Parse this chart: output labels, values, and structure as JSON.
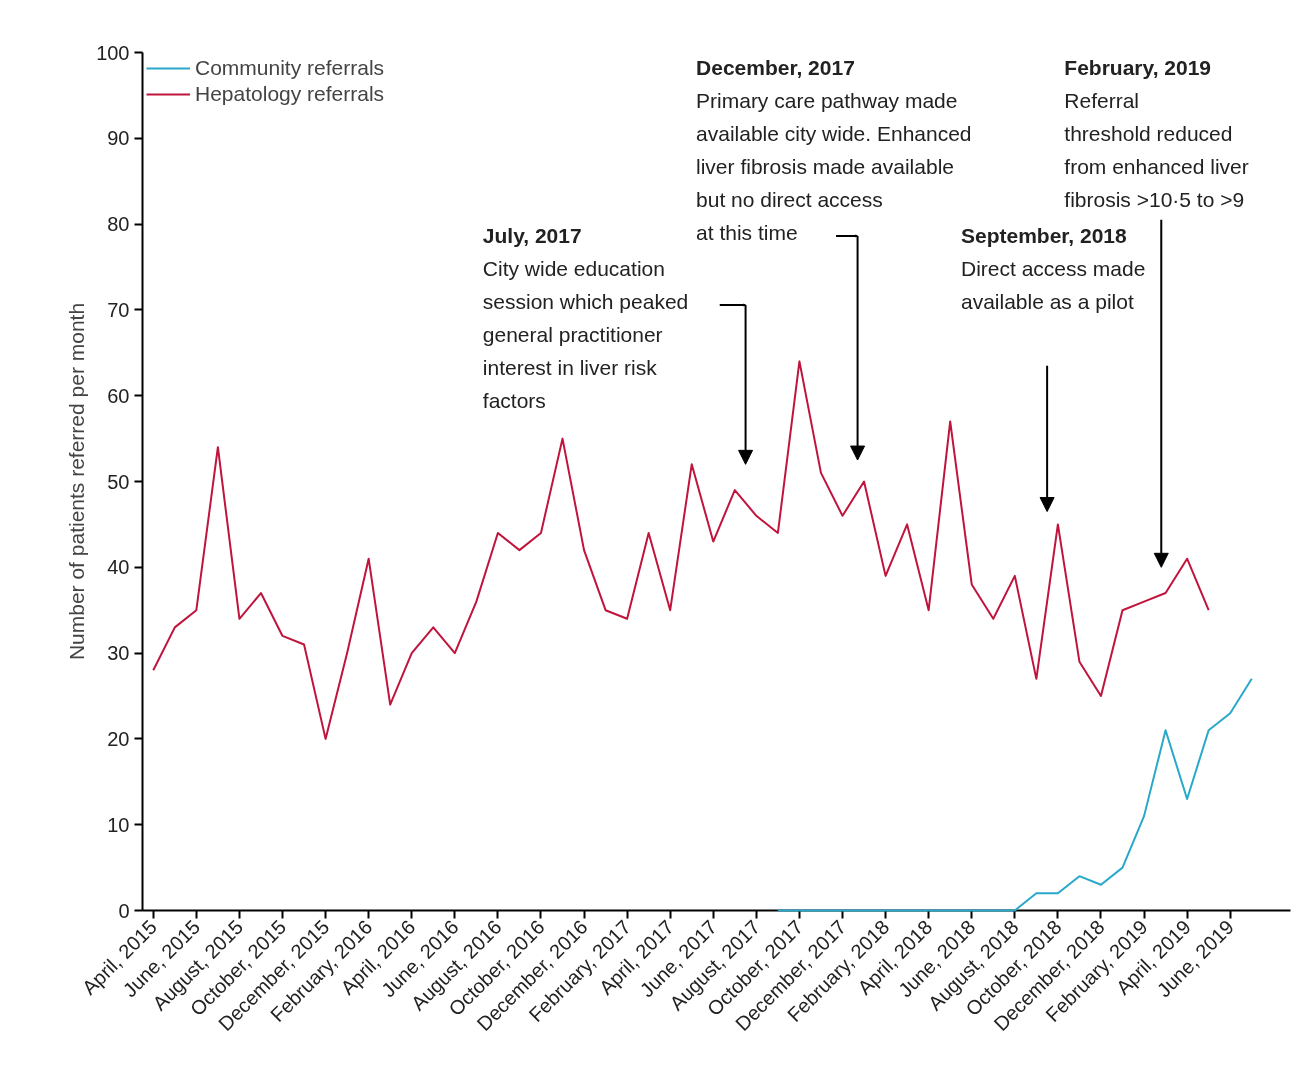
{
  "chart_data": {
    "type": "line",
    "ylabel": "Number of patients referred per month",
    "xlim": [
      "2015-03-16",
      "2019-08-25"
    ],
    "ylim": [
      0,
      100
    ],
    "yticks": [
      0,
      10,
      20,
      30,
      40,
      50,
      60,
      70,
      80,
      90,
      100
    ],
    "xticks": [
      {
        "value": "2015-04",
        "label": "April, 2015"
      },
      {
        "value": "2015-06",
        "label": "June, 2015"
      },
      {
        "value": "2015-08",
        "label": "August, 2015"
      },
      {
        "value": "2015-10",
        "label": "October, 2015"
      },
      {
        "value": "2015-12",
        "label": "December, 2015"
      },
      {
        "value": "2016-02",
        "label": "February, 2016"
      },
      {
        "value": "2016-04",
        "label": "April, 2016"
      },
      {
        "value": "2016-06",
        "label": "June, 2016"
      },
      {
        "value": "2016-08",
        "label": "August, 2016"
      },
      {
        "value": "2016-10",
        "label": "October, 2016"
      },
      {
        "value": "2016-12",
        "label": "December, 2016"
      },
      {
        "value": "2017-02",
        "label": "February, 2017"
      },
      {
        "value": "2017-04",
        "label": "April, 2017"
      },
      {
        "value": "2017-06",
        "label": "June, 2017"
      },
      {
        "value": "2017-08",
        "label": "August, 2017"
      },
      {
        "value": "2017-10",
        "label": "October, 2017"
      },
      {
        "value": "2017-12",
        "label": "December, 2017"
      },
      {
        "value": "2018-02",
        "label": "February, 2018"
      },
      {
        "value": "2018-04",
        "label": "April, 2018"
      },
      {
        "value": "2018-06",
        "label": "June, 2018"
      },
      {
        "value": "2018-08",
        "label": "August, 2018"
      },
      {
        "value": "2018-10",
        "label": "October, 2018"
      },
      {
        "value": "2018-12",
        "label": "December, 2018"
      },
      {
        "value": "2019-02",
        "label": "February, 2019"
      },
      {
        "value": "2019-04",
        "label": "April, 2019"
      },
      {
        "value": "2019-06",
        "label": "June, 2019"
      }
    ],
    "series": [
      {
        "name": "Community referrals",
        "color": "#29a8c9",
        "x": [
          "2017-09",
          "2017-10",
          "2017-11",
          "2017-12",
          "2018-01",
          "2018-02",
          "2018-03",
          "2018-04",
          "2018-05",
          "2018-06",
          "2018-07",
          "2018-08",
          "2018-09",
          "2018-10",
          "2018-11",
          "2018-12",
          "2019-01",
          "2019-02",
          "2019-03",
          "2019-04",
          "2019-05",
          "2019-06",
          "2019-07"
        ],
        "values": [
          0,
          0,
          0,
          0,
          0,
          0,
          0,
          0,
          0,
          0,
          0,
          0,
          2,
          2,
          4,
          3,
          5,
          11,
          21,
          13,
          21,
          23,
          27
        ]
      },
      {
        "name": "Hepatology referrals",
        "color": "#c0143c",
        "x": [
          "2015-04",
          "2015-05",
          "2015-06",
          "2015-07",
          "2015-08",
          "2015-09",
          "2015-10",
          "2015-11",
          "2015-12",
          "2016-01",
          "2016-02",
          "2016-03",
          "2016-04",
          "2016-05",
          "2016-06",
          "2016-07",
          "2016-08",
          "2016-09",
          "2016-10",
          "2016-11",
          "2016-12",
          "2017-01",
          "2017-02",
          "2017-03",
          "2017-04",
          "2017-05",
          "2017-06",
          "2017-07",
          "2017-08",
          "2017-09",
          "2017-10",
          "2017-11",
          "2017-12",
          "2018-01",
          "2018-02",
          "2018-03",
          "2018-04",
          "2018-05",
          "2018-06",
          "2018-07",
          "2018-08",
          "2018-09",
          "2018-10",
          "2018-11",
          "2018-12",
          "2019-01",
          "2019-02",
          "2019-03",
          "2019-04",
          "2019-05"
        ],
        "values": [
          28,
          33,
          35,
          54,
          34,
          37,
          32,
          31,
          20,
          30,
          41,
          24,
          30,
          33,
          30,
          36,
          44,
          42,
          44,
          55,
          42,
          35,
          34,
          44,
          35,
          52,
          43,
          49,
          46,
          44,
          64,
          51,
          46,
          50,
          39,
          45,
          35,
          57,
          38,
          34,
          39,
          27,
          45,
          29,
          25,
          35,
          36,
          37,
          41,
          35
        ]
      }
    ],
    "annotations": [
      "July, 2017\nCity wide education\nsession which peaked\ngeneral practitioner\ninterest in liver risk\nfactors",
      "December, 2017\nPrimary care pathway made\navailable city wide. Enhanced\nliver fibrosis made available\nbut no direct access\nat this time",
      "September, 2018\nDirect access made\navailable as a pilot",
      "February, 2019\nReferral\nthreshold reduced\nfrom enhanced liver\nfibrosis >10·5 to >9"
    ],
    "legend": "top left",
    "grid": false,
    "marker": "none",
    "line_style": "solid"
  }
}
